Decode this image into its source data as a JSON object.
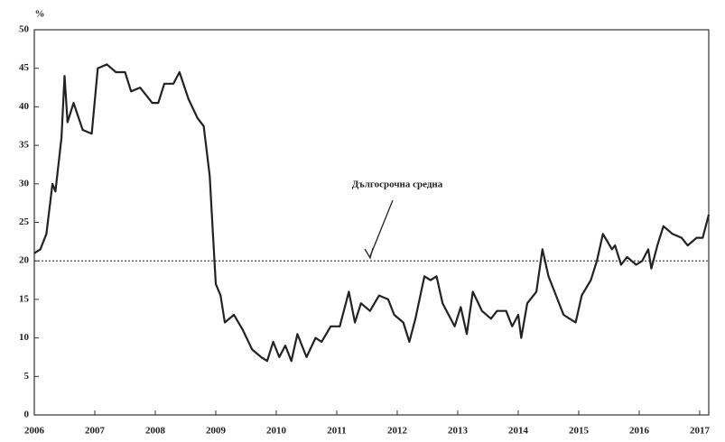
{
  "chart_data": {
    "type": "line",
    "y_label": "%",
    "annotation": "Дългосрочна средна",
    "reference_line": 20,
    "x": [
      2006.0,
      2006.1,
      2006.2,
      2006.3,
      2006.35,
      2006.45,
      2006.5,
      2006.55,
      2006.65,
      2006.8,
      2006.95,
      2007.05,
      2007.2,
      2007.35,
      2007.5,
      2007.6,
      2007.75,
      2007.95,
      2008.05,
      2008.15,
      2008.3,
      2008.4,
      2008.55,
      2008.7,
      2008.8,
      2008.9,
      2008.95,
      2009.0,
      2009.08,
      2009.15,
      2009.3,
      2009.45,
      2009.6,
      2009.75,
      2009.85,
      2009.95,
      2010.05,
      2010.15,
      2010.25,
      2010.35,
      2010.5,
      2010.65,
      2010.75,
      2010.9,
      2011.05,
      2011.2,
      2011.3,
      2011.4,
      2011.55,
      2011.7,
      2011.85,
      2011.95,
      2012.1,
      2012.2,
      2012.3,
      2012.45,
      2012.55,
      2012.65,
      2012.75,
      2012.85,
      2012.95,
      2013.05,
      2013.15,
      2013.25,
      2013.4,
      2013.55,
      2013.65,
      2013.8,
      2013.9,
      2014.0,
      2014.05,
      2014.15,
      2014.3,
      2014.4,
      2014.5,
      2014.6,
      2014.75,
      2014.85,
      2014.95,
      2015.05,
      2015.2,
      2015.3,
      2015.4,
      2015.55,
      2015.6,
      2015.7,
      2015.8,
      2015.95,
      2016.05,
      2016.15,
      2016.2,
      2016.3,
      2016.4,
      2016.55,
      2016.7,
      2016.8,
      2016.95,
      2017.05,
      2017.15
    ],
    "series": [
      {
        "color": "#222222",
        "values": [
          21,
          21.5,
          23.5,
          30,
          29,
          36,
          44,
          38,
          40.5,
          37,
          36.5,
          45,
          45.5,
          44.5,
          44.5,
          42,
          42.5,
          40.5,
          40.5,
          43,
          43,
          44.5,
          41,
          38.5,
          37.5,
          31,
          24,
          17,
          15.5,
          12,
          13,
          11,
          8.5,
          7.5,
          7,
          9.5,
          7.5,
          9,
          7,
          10.5,
          7.5,
          10,
          9.5,
          11.5,
          11.5,
          16,
          12,
          14.5,
          13.5,
          15.5,
          15,
          13,
          12,
          9.5,
          12.5,
          18,
          17.5,
          18,
          14.5,
          13,
          11.5,
          14,
          10.5,
          16,
          13.5,
          12.5,
          13.5,
          13.5,
          11.5,
          13,
          10,
          14.5,
          16,
          21.5,
          18,
          16,
          13,
          12.5,
          12,
          15.5,
          17.5,
          20,
          23.5,
          21.5,
          22,
          19.5,
          20.5,
          19.5,
          20,
          21.5,
          19,
          22,
          24.5,
          23.5,
          23,
          22,
          23,
          23,
          26
        ]
      }
    ],
    "xlim": [
      2006,
      2017.15
    ],
    "xticks": [
      2006,
      2007,
      2008,
      2009,
      2010,
      2011,
      2012,
      2013,
      2014,
      2015,
      2016,
      2017
    ],
    "ylim": [
      0,
      50
    ],
    "yticks": [
      0,
      5,
      10,
      15,
      20,
      25,
      30,
      35,
      40,
      45,
      50
    ]
  }
}
